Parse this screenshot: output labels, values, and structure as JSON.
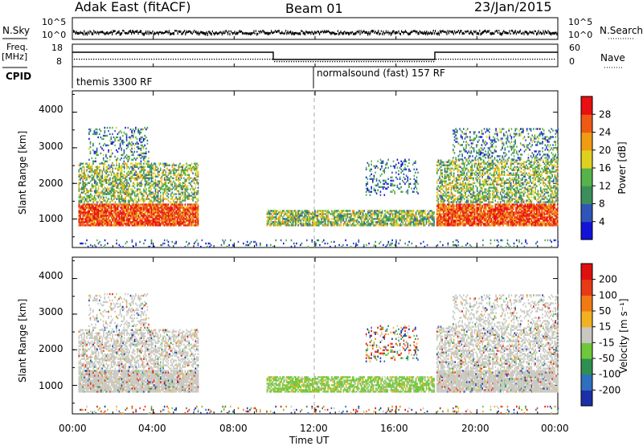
{
  "header": {
    "station": "Adak East (fitACF)",
    "beam": "Beam 01",
    "date": "23/Jan/2015"
  },
  "strip": {
    "nsky_label": "N.Sky",
    "nsearch_label": "N.Search",
    "nsky_ticks": [
      "10^5",
      "10^0"
    ],
    "nsky_right_ticks": [
      "10^5",
      "10^0"
    ],
    "freq_label": "Freq.",
    "freq_unit": "[MHz]",
    "freq_ticks": [
      "18",
      "8"
    ],
    "nave_label": "Nave",
    "nave_ticks": [
      "60",
      "0"
    ],
    "cpid_label": "CPID",
    "cpid_programs": [
      "themis 3300 RF",
      "normalsound (fast) 157 RF"
    ]
  },
  "chart_data": [
    {
      "type": "heatmap",
      "panel": "power",
      "ylabel": "Slant Range [km]",
      "y_ticks": [
        "1000",
        "2000",
        "3000",
        "4000"
      ],
      "ylim": [
        200,
        4600
      ],
      "colorbar_label": "Power [dB]",
      "colorbar_ticks": [
        "4",
        "8",
        "12",
        "16",
        "20",
        "24",
        "28"
      ],
      "colors": [
        "#1313d8",
        "#2f55b8",
        "#3b8f5a",
        "#55b34a",
        "#e0d020",
        "#f09b12",
        "#ee5a14",
        "#e81010"
      ]
    },
    {
      "type": "heatmap",
      "panel": "velocity",
      "ylabel": "Slant Range [km]",
      "y_ticks": [
        "1000",
        "2000",
        "3000",
        "4000"
      ],
      "ylim": [
        200,
        4600
      ],
      "colorbar_label": "Velocity [m s⁻¹]",
      "colorbar_ticks": [
        "200",
        "100",
        "50",
        "15",
        "-15",
        "-50",
        "-100",
        "-200"
      ],
      "colors": [
        "#1b2fa8",
        "#2f6fbf",
        "#2f8f4f",
        "#6ec83a",
        "#c8c8c0",
        "#f3b020",
        "#f27a14",
        "#e83a14",
        "#e01010"
      ]
    }
  ],
  "xaxis": {
    "ticks": [
      "00:00",
      "04:00",
      "08:00",
      "12:00",
      "16:00",
      "20:00",
      "00:00"
    ],
    "label": "Time UT"
  }
}
